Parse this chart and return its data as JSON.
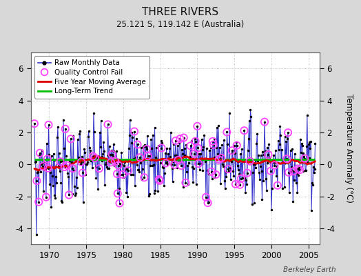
{
  "title": "THREE RIVERS",
  "subtitle": "25.121 S, 119.142 E (Australia)",
  "ylabel": "Temperature Anomaly (°C)",
  "credit": "Berkeley Earth",
  "xlim": [
    1967.5,
    2006.5
  ],
  "ylim": [
    -5.0,
    7.0
  ],
  "yticks": [
    -4,
    -2,
    0,
    2,
    4,
    6
  ],
  "xticks": [
    1970,
    1975,
    1980,
    1985,
    1990,
    1995,
    2000,
    2005
  ],
  "line_color": "#3333cc",
  "marker_color": "#000000",
  "ma_color": "#dd0000",
  "trend_color": "#00bb00",
  "qc_color": "#ff44ff",
  "background_color": "#d8d8d8",
  "plot_bg_color": "#ffffff",
  "trend_value": 0.32,
  "seed": 7
}
